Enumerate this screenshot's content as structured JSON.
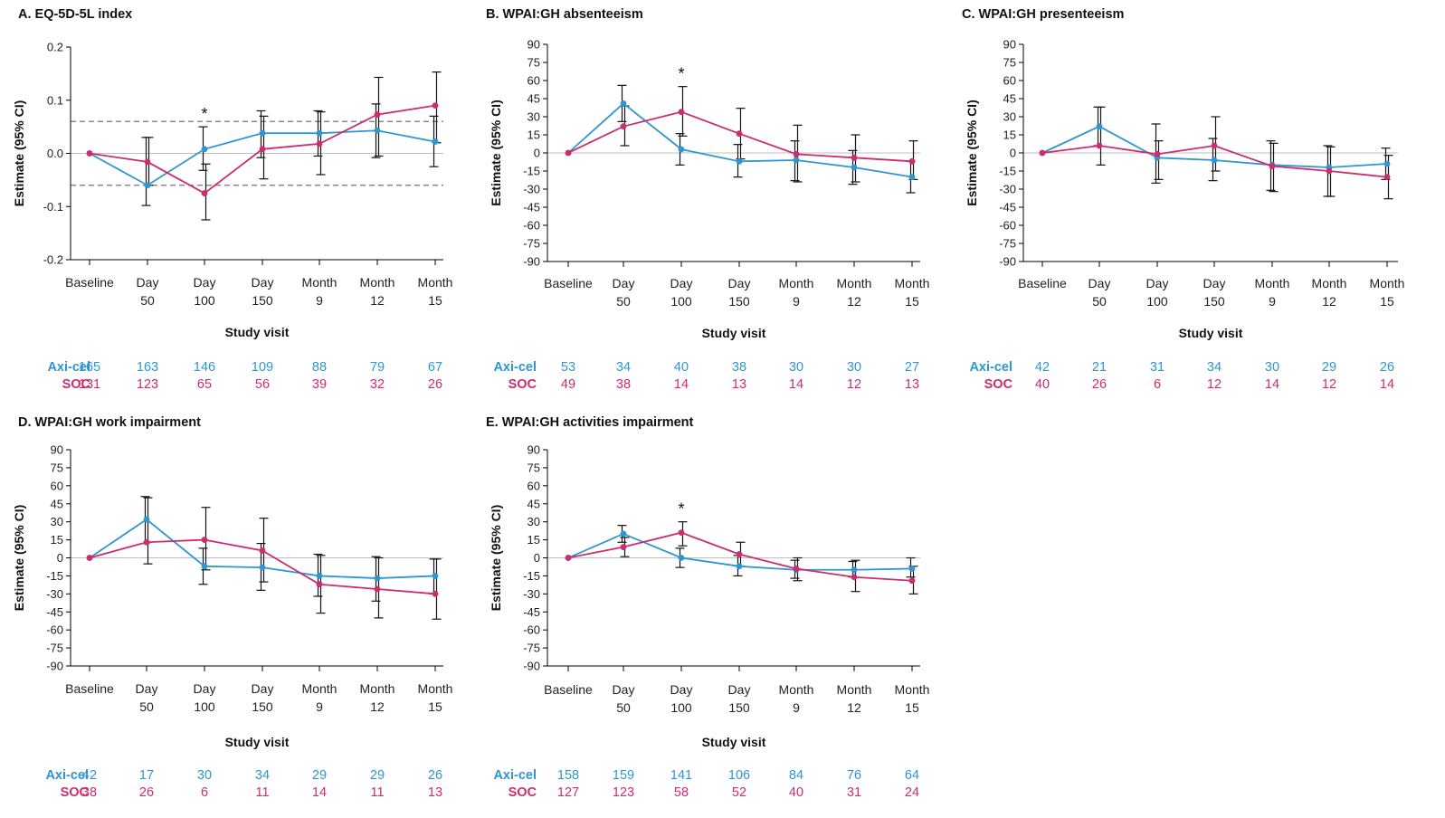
{
  "colors": {
    "axicel": "#2e96d0",
    "soc": "#cd2c6e",
    "axis": "#000000",
    "zero_line": "#bfbfbf",
    "mcid_line": "#777777"
  },
  "common": {
    "x_axis_title": "Study visit",
    "x_ticks": [
      [
        "Baseline"
      ],
      [
        "Day",
        "50"
      ],
      [
        "Day",
        "100"
      ],
      [
        "Day",
        "150"
      ],
      [
        "Month",
        "9"
      ],
      [
        "Month",
        "12"
      ],
      [
        "Month",
        "15"
      ]
    ],
    "y_axis_title": "Estimate (95% CI)",
    "series_labels": {
      "axicel": "Axi-cel",
      "soc": "SOC"
    }
  },
  "chart_data": [
    {
      "type": "line",
      "title": "A. EQ-5D-5L index",
      "ylabel": "Estimate (95% CI)",
      "xlabel": "Study visit",
      "ylim": [
        -0.2,
        0.2
      ],
      "yticks": [
        "0.2",
        "0.1",
        "0.0",
        "-0.1",
        "-0.2"
      ],
      "ytick_values": [
        0.2,
        0.1,
        0.0,
        -0.1,
        -0.2
      ],
      "reference_lines": [
        0.06,
        -0.06
      ],
      "significance_marker": "*",
      "significance_index": 2,
      "series": [
        {
          "name": "Axi-cel",
          "values": [
            0.0,
            -0.06,
            0.008,
            0.038,
            0.038,
            0.043,
            0.022
          ],
          "ci_low": [
            0.0,
            -0.098,
            -0.032,
            -0.008,
            -0.005,
            -0.008,
            -0.025
          ],
          "ci_high": [
            0.0,
            0.03,
            0.05,
            0.08,
            0.08,
            0.093,
            0.07
          ],
          "n": [
            "165",
            "163",
            "146",
            "109",
            "88",
            "79",
            "67"
          ]
        },
        {
          "name": "SOC",
          "values": [
            0.0,
            -0.016,
            -0.075,
            0.008,
            0.018,
            0.073,
            0.09
          ],
          "ci_low": [
            0.0,
            -0.06,
            -0.125,
            -0.048,
            -0.04,
            -0.005,
            0.02
          ],
          "ci_high": [
            0.0,
            0.03,
            -0.02,
            0.07,
            0.078,
            0.143,
            0.153
          ],
          "n": [
            "131",
            "123",
            "65",
            "56",
            "39",
            "32",
            "26"
          ]
        }
      ]
    },
    {
      "type": "line",
      "title": "B. WPAI:GH absenteeism",
      "ylabel": "Estimate (95% CI)",
      "xlabel": "Study visit",
      "ylim": [
        -90,
        90
      ],
      "yticks": [
        "90",
        "75",
        "60",
        "45",
        "30",
        "15",
        "0",
        "-15",
        "-30",
        "-45",
        "-60",
        "-75",
        "-90"
      ],
      "ytick_values": [
        90,
        75,
        60,
        45,
        30,
        15,
        0,
        -15,
        -30,
        -45,
        -60,
        -75,
        -90
      ],
      "reference_lines": [],
      "significance_marker": "*",
      "significance_index": 2,
      "series": [
        {
          "name": "Axi-cel",
          "values": [
            0,
            41,
            3,
            -7,
            -6,
            -12,
            -20
          ],
          "ci_low": [
            0,
            26,
            -10,
            -20,
            -23,
            -26,
            -33
          ],
          "ci_high": [
            0,
            56,
            16,
            7,
            10,
            2,
            -7
          ],
          "n": [
            "53",
            "34",
            "40",
            "38",
            "30",
            "30",
            "27"
          ]
        },
        {
          "name": "SOC",
          "values": [
            0,
            22,
            34,
            16,
            -1,
            -4,
            -7
          ],
          "ci_low": [
            0,
            6,
            14,
            -5,
            -24,
            -24,
            -22
          ],
          "ci_high": [
            0,
            39,
            55,
            37,
            23,
            15,
            10
          ],
          "n": [
            "49",
            "38",
            "14",
            "13",
            "14",
            "12",
            "13"
          ]
        }
      ]
    },
    {
      "type": "line",
      "title": "C. WPAI:GH presenteeism",
      "ylabel": "Estimate (95% CI)",
      "xlabel": "Study visit",
      "ylim": [
        -90,
        90
      ],
      "yticks": [
        "90",
        "75",
        "60",
        "45",
        "30",
        "15",
        "0",
        "-15",
        "-30",
        "-45",
        "-60",
        "-75",
        "-90"
      ],
      "ytick_values": [
        90,
        75,
        60,
        45,
        30,
        15,
        0,
        -15,
        -30,
        -45,
        -60,
        -75,
        -90
      ],
      "reference_lines": [],
      "significance_marker": "",
      "significance_index": -1,
      "series": [
        {
          "name": "Axi-cel",
          "values": [
            0,
            22,
            -4,
            -6,
            -10,
            -12,
            -9
          ],
          "ci_low": [
            0,
            6,
            -25,
            -23,
            -31,
            -36,
            -22
          ],
          "ci_high": [
            0,
            38,
            24,
            12,
            10,
            6,
            4
          ],
          "n": [
            "42",
            "21",
            "31",
            "34",
            "30",
            "29",
            "26"
          ]
        },
        {
          "name": "SOC",
          "values": [
            0,
            6,
            -1,
            6,
            -11,
            -15,
            -20
          ],
          "ci_low": [
            0,
            -10,
            -22,
            -15,
            -32,
            -36,
            -38
          ],
          "ci_high": [
            0,
            38,
            10,
            30,
            8,
            5,
            -2
          ],
          "n": [
            "40",
            "26",
            "6",
            "12",
            "14",
            "12",
            "14"
          ]
        }
      ]
    },
    {
      "type": "line",
      "title": "D. WPAI:GH work impairment",
      "ylabel": "Estimate (95% CI)",
      "xlabel": "Study visit",
      "ylim": [
        -90,
        90
      ],
      "yticks": [
        "90",
        "75",
        "60",
        "45",
        "30",
        "15",
        "0",
        "-15",
        "-30",
        "-45",
        "-60",
        "-75",
        "-90"
      ],
      "ytick_values": [
        90,
        75,
        60,
        45,
        30,
        15,
        0,
        -15,
        -30,
        -45,
        -60,
        -75,
        -90
      ],
      "reference_lines": [],
      "significance_marker": "",
      "significance_index": -1,
      "series": [
        {
          "name": "Axi-cel",
          "values": [
            0,
            32,
            -7,
            -8,
            -15,
            -17,
            -15
          ],
          "ci_low": [
            0,
            12,
            -22,
            -27,
            -32,
            -36,
            -30
          ],
          "ci_high": [
            0,
            51,
            8,
            12,
            3,
            1,
            -1
          ],
          "n": [
            "42",
            "17",
            "30",
            "34",
            "29",
            "29",
            "26"
          ]
        },
        {
          "name": "SOC",
          "values": [
            0,
            13,
            15,
            6,
            -22,
            -26,
            -30
          ],
          "ci_low": [
            0,
            -5,
            -10,
            -20,
            -46,
            -50,
            -51
          ],
          "ci_high": [
            0,
            50,
            42,
            33,
            2,
            0,
            -1
          ],
          "n": [
            "38",
            "26",
            "6",
            "11",
            "14",
            "11",
            "13"
          ]
        }
      ]
    },
    {
      "type": "line",
      "title": "E. WPAI:GH activities impairment",
      "ylabel": "Estimate (95% CI)",
      "xlabel": "Study visit",
      "ylim": [
        -90,
        90
      ],
      "yticks": [
        "90",
        "75",
        "60",
        "45",
        "30",
        "15",
        "0",
        "-15",
        "-30",
        "-45",
        "-60",
        "-75",
        "-90"
      ],
      "ytick_values": [
        90,
        75,
        60,
        45,
        30,
        15,
        0,
        -15,
        -30,
        -45,
        -60,
        -75,
        -90
      ],
      "reference_lines": [],
      "significance_marker": "*",
      "significance_index": 2,
      "series": [
        {
          "name": "Axi-cel",
          "values": [
            0,
            20,
            0,
            -7,
            -10,
            -10,
            -9
          ],
          "ci_low": [
            0,
            13,
            -8,
            -15,
            -17,
            -16,
            -16
          ],
          "ci_high": [
            0,
            27,
            8,
            2,
            -2,
            -3,
            0
          ],
          "n": [
            "158",
            "159",
            "141",
            "106",
            "84",
            "76",
            "64"
          ]
        },
        {
          "name": "SOC",
          "values": [
            0,
            9,
            21,
            3,
            -9,
            -16,
            -19
          ],
          "ci_low": [
            0,
            1,
            10,
            -7,
            -19,
            -28,
            -30
          ],
          "ci_high": [
            0,
            17,
            30,
            13,
            0,
            -2,
            -7
          ],
          "n": [
            "127",
            "123",
            "58",
            "52",
            "40",
            "31",
            "24"
          ]
        }
      ]
    }
  ]
}
